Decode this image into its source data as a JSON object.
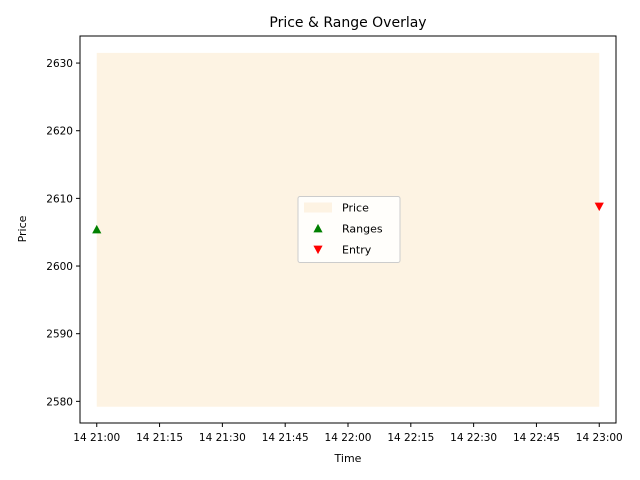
{
  "chart_data": {
    "type": "area",
    "title": "Price & Range Overlay",
    "xlabel": "Time",
    "ylabel": "Price",
    "x_ticks": [
      "14 21:00",
      "14 21:15",
      "14 21:30",
      "14 21:45",
      "14 22:00",
      "14 22:15",
      "14 22:30",
      "14 22:45",
      "14 23:00"
    ],
    "x_range": [
      "14 20:56",
      "14 23:04"
    ],
    "y_ticks": [
      2580,
      2590,
      2600,
      2610,
      2620,
      2630
    ],
    "ylim": [
      2576.8,
      2634
    ],
    "grid": false,
    "legend_position": "center",
    "series": [
      {
        "name": "Price",
        "kind": "range-band",
        "color": "#fdf3e3",
        "x": [
          "14 21:00",
          "14 23:00"
        ],
        "low": [
          2579.2,
          2579.2
        ],
        "high": [
          2631.5,
          2631.5
        ]
      },
      {
        "name": "Ranges",
        "kind": "marker",
        "marker": "triangle-up",
        "color": "#008000",
        "points": [
          {
            "x": "14 21:00",
            "y": 2605.4
          }
        ]
      },
      {
        "name": "Entry",
        "kind": "marker",
        "marker": "triangle-down",
        "color": "#ff0000",
        "points": [
          {
            "x": "14 23:00",
            "y": 2608.8
          }
        ]
      }
    ]
  }
}
